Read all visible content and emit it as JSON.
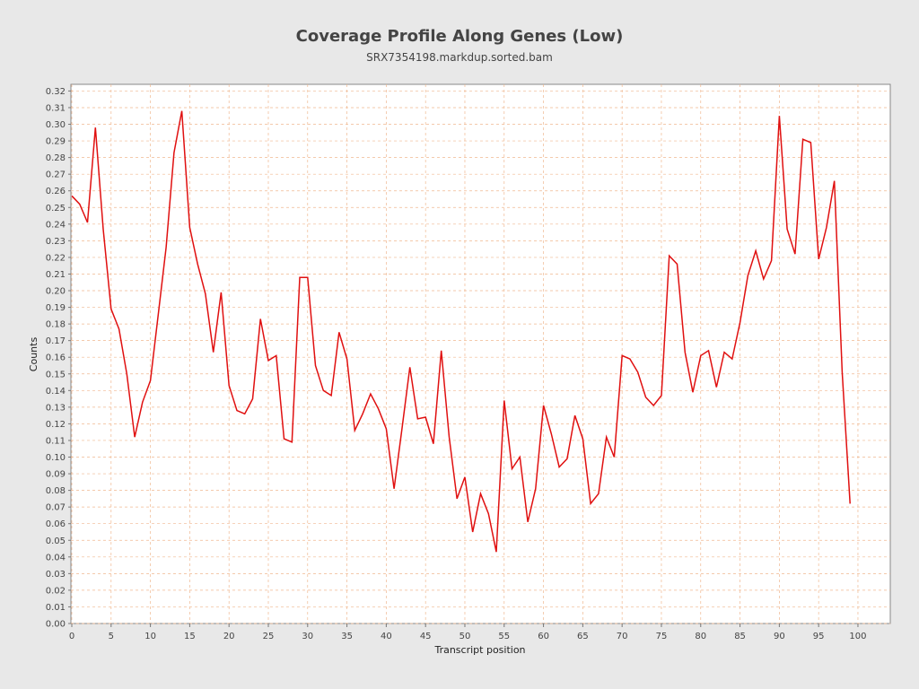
{
  "chart_data": {
    "type": "line",
    "title": "Coverage Profile Along Genes (Low)",
    "subtitle": "SRX7354198.markdup.sorted.bam",
    "xlabel": "Transcript position",
    "ylabel": "Counts",
    "xlim": [
      0,
      104
    ],
    "ylim": [
      0,
      0.324
    ],
    "x_ticks": [
      0,
      5,
      10,
      15,
      20,
      25,
      30,
      35,
      40,
      45,
      50,
      55,
      60,
      65,
      70,
      75,
      80,
      85,
      90,
      95,
      100
    ],
    "y_ticks": [
      "0.00",
      "0.01",
      "0.02",
      "0.03",
      "0.04",
      "0.05",
      "0.06",
      "0.07",
      "0.08",
      "0.09",
      "0.10",
      "0.11",
      "0.12",
      "0.13",
      "0.14",
      "0.15",
      "0.16",
      "0.17",
      "0.18",
      "0.19",
      "0.20",
      "0.21",
      "0.22",
      "0.23",
      "0.24",
      "0.25",
      "0.26",
      "0.27",
      "0.28",
      "0.29",
      "0.30",
      "0.31",
      "0.32"
    ],
    "grid": true,
    "line_color": "#e01010",
    "grid_color": "#f0b890",
    "series": [
      {
        "name": "",
        "x": [
          0,
          1,
          2,
          3,
          4,
          5,
          6,
          7,
          8,
          9,
          10,
          11,
          12,
          13,
          14,
          15,
          16,
          17,
          18,
          19,
          20,
          21,
          22,
          23,
          24,
          25,
          26,
          27,
          28,
          29,
          30,
          31,
          32,
          33,
          34,
          35,
          36,
          37,
          38,
          39,
          40,
          41,
          42,
          43,
          44,
          45,
          46,
          47,
          48,
          49,
          50,
          51,
          52,
          53,
          54,
          55,
          56,
          57,
          58,
          59,
          60,
          61,
          62,
          63,
          64,
          65,
          66,
          67,
          68,
          69,
          70,
          71,
          72,
          73,
          74,
          75,
          76,
          77,
          78,
          79,
          80,
          81,
          82,
          83,
          84,
          85,
          86,
          87,
          88,
          89,
          90,
          91,
          92,
          93,
          94,
          95,
          96,
          97,
          98,
          99
        ],
        "values": [
          0.257,
          0.252,
          0.241,
          0.298,
          0.237,
          0.189,
          0.177,
          0.15,
          0.112,
          0.133,
          0.146,
          0.186,
          0.226,
          0.283,
          0.308,
          0.238,
          0.216,
          0.198,
          0.163,
          0.199,
          0.143,
          0.128,
          0.126,
          0.135,
          0.183,
          0.158,
          0.161,
          0.111,
          0.109,
          0.208,
          0.208,
          0.155,
          0.14,
          0.137,
          0.175,
          0.159,
          0.116,
          0.126,
          0.138,
          0.129,
          0.117,
          0.081,
          0.117,
          0.154,
          0.123,
          0.124,
          0.108,
          0.164,
          0.112,
          0.075,
          0.088,
          0.055,
          0.078,
          0.066,
          0.043,
          0.134,
          0.093,
          0.1,
          0.061,
          0.081,
          0.131,
          0.114,
          0.094,
          0.099,
          0.125,
          0.111,
          0.072,
          0.078,
          0.112,
          0.1,
          0.161,
          0.159,
          0.151,
          0.136,
          0.131,
          0.137,
          0.221,
          0.216,
          0.163,
          0.139,
          0.161,
          0.164,
          0.142,
          0.163,
          0.159,
          0.181,
          0.209,
          0.224,
          0.207,
          0.218,
          0.305,
          0.237,
          0.222,
          0.291,
          0.289,
          0.219,
          0.238,
          0.266,
          0.151,
          0.072
        ]
      }
    ]
  }
}
